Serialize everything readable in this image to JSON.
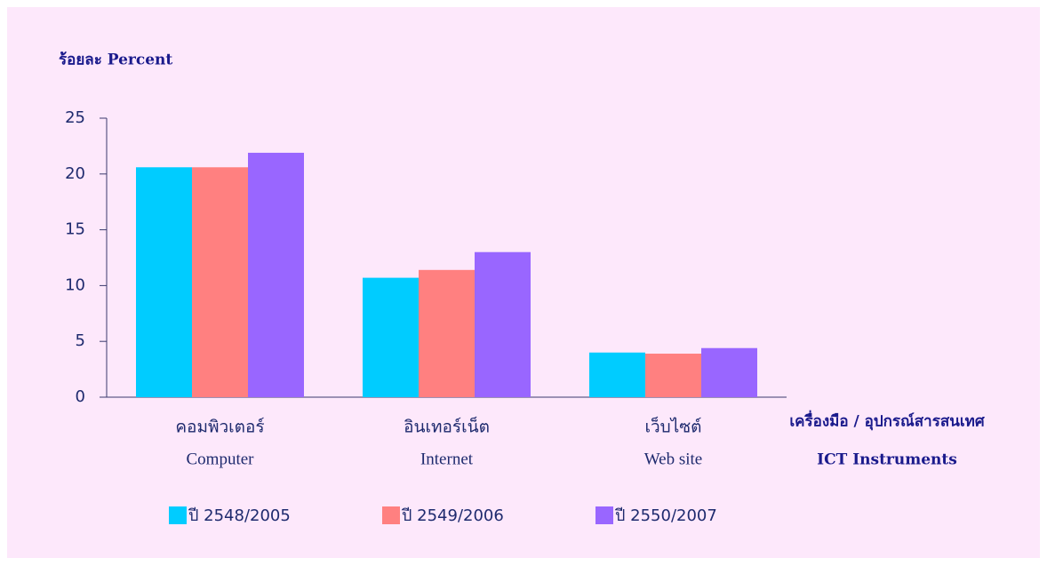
{
  "chart_data": {
    "type": "bar",
    "y_label": "ร้อยละ  Percent",
    "x_label": [
      "เครื่องมือ / อุปกรณ์สารสนเทศ",
      "ICT Instruments"
    ],
    "categories": [
      [
        "คอมพิวเตอร์",
        "Computer"
      ],
      [
        "อินเทอร์เน็ต",
        "Internet"
      ],
      [
        "เว็บไซต์",
        "Web site"
      ]
    ],
    "series": [
      {
        "name": "ปี 2548/2005",
        "color": "#00ccff",
        "values": [
          20.6,
          10.7,
          4.0
        ]
      },
      {
        "name": "ปี 2549/2006",
        "color": "#ff8080",
        "values": [
          20.6,
          11.4,
          3.9
        ]
      },
      {
        "name": "ปี 2550/2007",
        "color": "#9966ff",
        "values": [
          21.9,
          13.0,
          4.4
        ]
      }
    ],
    "ylim": [
      0,
      25
    ],
    "yticks": [
      0,
      5,
      10,
      15,
      20,
      25
    ],
    "grid": false,
    "legend": "bottom"
  }
}
